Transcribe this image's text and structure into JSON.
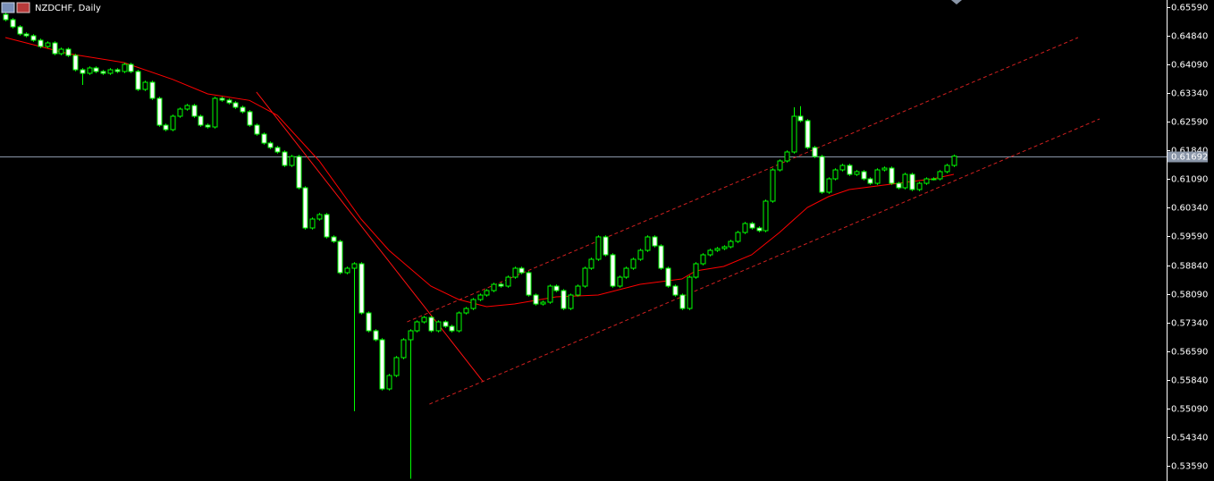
{
  "chart_data": {
    "type": "candlestick",
    "title": "NZDCHF, Daily",
    "up_color": "#000000",
    "down_color": "#ffffff",
    "wick_color": "#00ff00",
    "ylim": [
      0.53192,
      0.65777
    ],
    "xlim": [
      -0.77,
      166.5
    ],
    "yticks": [
      {
        "value": 0.6559,
        "label": "0.65590"
      },
      {
        "value": 0.6484,
        "label": "0.64840"
      },
      {
        "value": 0.6409,
        "label": "0.64090"
      },
      {
        "value": 0.6334,
        "label": "0.63340"
      },
      {
        "value": 0.6259,
        "label": "0.62590"
      },
      {
        "value": 0.6184,
        "label": "0.61840"
      },
      {
        "value": 0.6109,
        "label": "0.61090"
      },
      {
        "value": 0.6034,
        "label": "0.60340"
      },
      {
        "value": 0.5959,
        "label": "0.59590"
      },
      {
        "value": 0.5884,
        "label": "0.58840"
      },
      {
        "value": 0.5809,
        "label": "0.58090"
      },
      {
        "value": 0.5734,
        "label": "0.57340"
      },
      {
        "value": 0.5659,
        "label": "0.56590"
      },
      {
        "value": 0.5584,
        "label": "0.55840"
      },
      {
        "value": 0.5509,
        "label": "0.55090"
      },
      {
        "value": 0.5434,
        "label": "0.54340"
      },
      {
        "value": 0.5359,
        "label": "0.53590"
      }
    ],
    "current_price": {
      "value": 0.61692,
      "label": "0.61692",
      "color": "#8a96a8"
    },
    "open": [
      0.654,
      0.65262,
      0.65075,
      0.64888,
      0.64841,
      0.64724,
      0.64561,
      0.64654,
      0.64373,
      0.6449,
      0.64327,
      0.63952,
      0.63859,
      0.63999,
      0.63906,
      0.63859,
      0.63952,
      0.63906,
      0.64093,
      0.63906,
      0.63438,
      0.63625,
      0.63204,
      0.62502,
      0.62385,
      0.62736,
      0.62923,
      0.63017,
      0.62736,
      0.62502,
      0.62455,
      0.63204,
      0.63157,
      0.63087,
      0.6297,
      0.62853,
      0.62502,
      0.62268,
      0.62034,
      0.61917,
      0.618,
      0.61449,
      0.61683,
      0.60864,
      0.59812,
      0.60046,
      0.60163,
      0.59578,
      0.59461,
      0.58642,
      0.58759,
      0.58876,
      0.57589,
      0.57122,
      0.56888,
      0.55601,
      0.55952,
      0.5642,
      0.56888,
      0.57122,
      0.57355,
      0.57472,
      0.57122,
      0.57355,
      0.57239,
      0.57122,
      0.57589,
      0.57706,
      0.5794,
      0.58057,
      0.58174,
      0.58338,
      0.58291,
      0.58525,
      0.58759,
      0.58642,
      0.58057,
      0.57823,
      0.5787,
      0.58291,
      0.58174,
      0.57706,
      0.58057,
      0.58291,
      0.58759,
      0.58993,
      0.59578,
      0.5911,
      0.58291,
      0.58525,
      0.58759,
      0.58993,
      0.59227,
      0.59578,
      0.59344,
      0.58759,
      0.58291,
      0.58057,
      0.57706,
      0.58525,
      0.58876,
      0.5911,
      0.59227,
      0.59274,
      0.5932,
      0.59461,
      0.59695,
      0.59929,
      0.59812,
      0.59742,
      0.60514,
      0.61332,
      0.61566,
      0.618,
      0.62736,
      0.62619,
      0.61917,
      0.61683,
      0.60748,
      0.61098,
      0.61332,
      0.61449,
      0.61215,
      0.61286,
      0.61098,
      0.60981,
      0.61332,
      0.61379,
      0.60981,
      0.60864,
      0.61215,
      0.60818,
      0.60981,
      0.61098,
      0.61098,
      0.61286,
      0.61449
    ],
    "high": [
      0.6544,
      0.65302,
      0.65115,
      0.64928,
      0.64881,
      0.64764,
      0.64694,
      0.64694,
      0.6453,
      0.6453,
      0.64367,
      0.63992,
      0.64039,
      0.64039,
      0.63946,
      0.63992,
      0.63992,
      0.64133,
      0.64133,
      0.63946,
      0.63665,
      0.63665,
      0.63244,
      0.62542,
      0.62776,
      0.62963,
      0.63057,
      0.63057,
      0.62776,
      0.62542,
      0.63244,
      0.63244,
      0.63197,
      0.63127,
      0.6301,
      0.62893,
      0.62542,
      0.62308,
      0.62074,
      0.61957,
      0.6184,
      0.61723,
      0.61723,
      0.60904,
      0.60086,
      0.60203,
      0.60203,
      0.59618,
      0.59501,
      0.58799,
      0.58916,
      0.58916,
      0.57629,
      0.57162,
      0.56928,
      0.55992,
      0.5646,
      0.56928,
      0.57162,
      0.57395,
      0.57512,
      0.57512,
      0.57395,
      0.57395,
      0.57279,
      0.57629,
      0.57746,
      0.5798,
      0.58097,
      0.58214,
      0.58378,
      0.58378,
      0.58565,
      0.58799,
      0.58799,
      0.58682,
      0.58097,
      0.5791,
      0.58331,
      0.58331,
      0.58214,
      0.58097,
      0.58331,
      0.58799,
      0.59033,
      0.59618,
      0.59618,
      0.5915,
      0.58565,
      0.58799,
      0.59033,
      0.59267,
      0.59618,
      0.59618,
      0.59384,
      0.58799,
      0.58331,
      0.58097,
      0.58565,
      0.58916,
      0.5915,
      0.59267,
      0.59314,
      0.5936,
      0.59501,
      0.59735,
      0.59969,
      0.59969,
      0.59852,
      0.60554,
      0.61372,
      0.61606,
      0.6184,
      0.6297,
      0.63,
      0.62659,
      0.61957,
      0.61723,
      0.61138,
      0.61372,
      0.61489,
      0.61489,
      0.61326,
      0.61326,
      0.61138,
      0.61372,
      0.61419,
      0.61419,
      0.61021,
      0.61255,
      0.61255,
      0.61021,
      0.61138,
      0.61138,
      0.61326,
      0.61489,
      0.61732
    ],
    "low": [
      0.65222,
      0.65035,
      0.64848,
      0.64801,
      0.64684,
      0.64521,
      0.64521,
      0.64333,
      0.64333,
      0.64287,
      0.63912,
      0.63555,
      0.63819,
      0.63866,
      0.63819,
      0.63819,
      0.63866,
      0.63866,
      0.63866,
      0.63398,
      0.63398,
      0.63164,
      0.62462,
      0.62345,
      0.62345,
      0.62696,
      0.62883,
      0.62696,
      0.62462,
      0.62415,
      0.62415,
      0.63117,
      0.63047,
      0.6293,
      0.62813,
      0.62462,
      0.62228,
      0.61994,
      0.61877,
      0.6176,
      0.61409,
      0.61409,
      0.60824,
      0.59772,
      0.59772,
      0.60006,
      0.59538,
      0.59421,
      0.58602,
      0.58602,
      0.55016,
      0.57549,
      0.57082,
      0.56848,
      0.55561,
      0.55561,
      0.55912,
      0.5638,
      0.5325,
      0.57082,
      0.57315,
      0.57082,
      0.57082,
      0.57199,
      0.57082,
      0.57082,
      0.57549,
      0.57666,
      0.579,
      0.58017,
      0.58134,
      0.58251,
      0.58251,
      0.58485,
      0.58602,
      0.58017,
      0.57783,
      0.57783,
      0.5783,
      0.58134,
      0.57666,
      0.57666,
      0.58017,
      0.58251,
      0.58719,
      0.58953,
      0.5907,
      0.58251,
      0.58251,
      0.58485,
      0.58719,
      0.58953,
      0.59187,
      0.59304,
      0.58719,
      0.58251,
      0.58017,
      0.57666,
      0.57666,
      0.58485,
      0.58836,
      0.5907,
      0.59187,
      0.59234,
      0.5928,
      0.59421,
      0.59655,
      0.59772,
      0.59702,
      0.59702,
      0.60474,
      0.61292,
      0.61526,
      0.6176,
      0.62579,
      0.61877,
      0.61643,
      0.60708,
      0.60708,
      0.61058,
      0.61292,
      0.61175,
      0.61175,
      0.61058,
      0.60941,
      0.60941,
      0.61292,
      0.60941,
      0.60824,
      0.60824,
      0.60778,
      0.60778,
      0.60941,
      0.61058,
      0.61058,
      0.61246,
      0.61409
    ],
    "close": [
      0.65262,
      0.65075,
      0.64888,
      0.64841,
      0.64724,
      0.64561,
      0.64654,
      0.64373,
      0.6449,
      0.64327,
      0.63952,
      0.63859,
      0.63999,
      0.63906,
      0.63859,
      0.63952,
      0.63906,
      0.64093,
      0.63906,
      0.63438,
      0.63625,
      0.63204,
      0.62502,
      0.62385,
      0.62736,
      0.62923,
      0.63017,
      0.62736,
      0.62502,
      0.62455,
      0.63204,
      0.63157,
      0.63087,
      0.6297,
      0.62853,
      0.62502,
      0.62268,
      0.62034,
      0.61917,
      0.618,
      0.61449,
      0.61683,
      0.60864,
      0.59812,
      0.60046,
      0.60163,
      0.59578,
      0.59461,
      0.58642,
      0.58759,
      0.58876,
      0.57589,
      0.57122,
      0.56888,
      0.55601,
      0.55952,
      0.5642,
      0.56888,
      0.57122,
      0.57355,
      0.57472,
      0.57122,
      0.57355,
      0.57239,
      0.57122,
      0.57589,
      0.57706,
      0.5794,
      0.58057,
      0.58174,
      0.58338,
      0.58291,
      0.58525,
      0.58759,
      0.58642,
      0.58057,
      0.57823,
      0.5787,
      0.58291,
      0.58174,
      0.57706,
      0.58057,
      0.58291,
      0.58759,
      0.58993,
      0.59578,
      0.5911,
      0.58291,
      0.58525,
      0.58759,
      0.58993,
      0.59227,
      0.59578,
      0.59344,
      0.58759,
      0.58291,
      0.58057,
      0.57706,
      0.58525,
      0.58876,
      0.5911,
      0.59227,
      0.59274,
      0.5932,
      0.59461,
      0.59695,
      0.59929,
      0.59812,
      0.59742,
      0.60514,
      0.61332,
      0.61566,
      0.618,
      0.62736,
      0.62619,
      0.61917,
      0.61683,
      0.60748,
      0.61098,
      0.61332,
      0.61449,
      0.61215,
      0.61286,
      0.61098,
      0.60981,
      0.61332,
      0.61379,
      0.60981,
      0.60864,
      0.61215,
      0.60818,
      0.60981,
      0.61098,
      0.61098,
      0.61286,
      0.61449,
      0.61692
    ],
    "moving_average": {
      "color": "#ff0000",
      "x": [
        0,
        9,
        17,
        24,
        29,
        35,
        39,
        45,
        51,
        55,
        61,
        65,
        69,
        73,
        79,
        85,
        91,
        97,
        99,
        103,
        107,
        111,
        115,
        118,
        121,
        127,
        133,
        136
      ],
      "values": [
        0.64794,
        0.64373,
        0.6414,
        0.637,
        0.6332,
        0.6315,
        0.6276,
        0.61566,
        0.60046,
        0.59227,
        0.58291,
        0.5794,
        0.57753,
        0.57823,
        0.5801,
        0.58057,
        0.58338,
        0.58478,
        0.58689,
        0.58806,
        0.5911,
        0.59695,
        0.6035,
        0.60631,
        0.60818,
        0.60958,
        0.61098,
        0.61215
      ]
    },
    "trendlines": [
      {
        "color": "#ff1010",
        "style": "solid",
        "x": [
          36,
          68.5
        ],
        "values": [
          0.63368,
          0.55789
        ]
      },
      {
        "color": "#d02020",
        "style": "dashed",
        "x": [
          57.6,
          153.8
        ],
        "values": [
          0.57355,
          0.64794
        ]
      },
      {
        "color": "#d02020",
        "style": "dashed",
        "x": [
          60.8,
          156.9
        ],
        "values": [
          0.55203,
          0.62666
        ]
      }
    ]
  }
}
